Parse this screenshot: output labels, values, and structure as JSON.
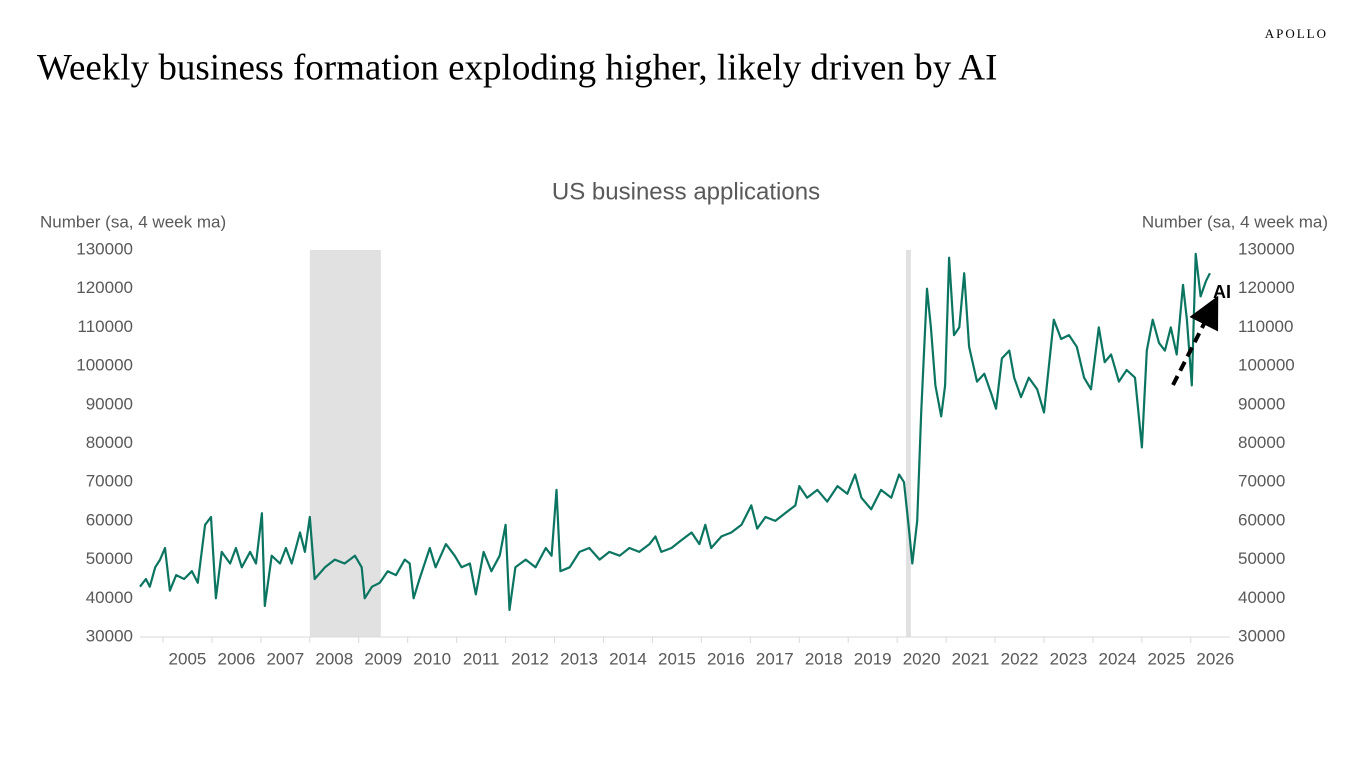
{
  "brand": "APOLLO",
  "headline": "Weekly business formation exploding higher, likely driven by AI",
  "chart_data": {
    "type": "line",
    "title": "US business applications",
    "y_label": "Number (sa, 4 week ma)",
    "y2_label": "Number (sa, 4 week ma)",
    "annotation": "AI",
    "shaded_periods": [
      [
        2008.0,
        2009.45
      ],
      [
        2020.18,
        2020.28
      ]
    ],
    "xlim": [
      2004.53,
      2026.8
    ],
    "xticks": [
      {
        "value": 2005.5,
        "label": "2005"
      },
      {
        "value": 2006.5,
        "label": "2006"
      },
      {
        "value": 2007.5,
        "label": "2007"
      },
      {
        "value": 2008.5,
        "label": "2008"
      },
      {
        "value": 2009.5,
        "label": "2009"
      },
      {
        "value": 2010.5,
        "label": "2010"
      },
      {
        "value": 2011.5,
        "label": "2011"
      },
      {
        "value": 2012.5,
        "label": "2012"
      },
      {
        "value": 2013.5,
        "label": "2013"
      },
      {
        "value": 2014.5,
        "label": "2014"
      },
      {
        "value": 2015.5,
        "label": "2015"
      },
      {
        "value": 2016.5,
        "label": "2016"
      },
      {
        "value": 2017.5,
        "label": "2017"
      },
      {
        "value": 2018.5,
        "label": "2018"
      },
      {
        "value": 2019.5,
        "label": "2019"
      },
      {
        "value": 2020.5,
        "label": "2020"
      },
      {
        "value": 2021.5,
        "label": "2021"
      },
      {
        "value": 2022.5,
        "label": "2022"
      },
      {
        "value": 2023.5,
        "label": "2023"
      },
      {
        "value": 2024.5,
        "label": "2024"
      },
      {
        "value": 2025.5,
        "label": "2025"
      },
      {
        "value": 2026.5,
        "label": "2026"
      }
    ],
    "ylim": [
      30000,
      130000
    ],
    "yticks": [
      30000,
      40000,
      50000,
      60000,
      70000,
      80000,
      90000,
      100000,
      110000,
      120000,
      130000
    ],
    "y2lim": [
      30000,
      130000
    ],
    "y2ticks": [
      30000,
      40000,
      50000,
      60000,
      70000,
      80000,
      90000,
      100000,
      110000,
      120000,
      130000
    ],
    "x": [
      2004.53,
      2004.65,
      2004.73,
      2004.84,
      2004.94,
      2005.04,
      2005.14,
      2005.27,
      2005.43,
      2005.59,
      2005.71,
      2005.86,
      2005.98,
      2006.08,
      2006.2,
      2006.37,
      2006.49,
      2006.61,
      2006.78,
      2006.9,
      2007.02,
      2007.08,
      2007.22,
      2007.39,
      2007.51,
      2007.63,
      2007.8,
      2007.9,
      2008.0,
      2008.1,
      2008.31,
      2008.51,
      2008.71,
      2008.92,
      2009.06,
      2009.12,
      2009.27,
      2009.43,
      2009.59,
      2009.76,
      2009.94,
      2010.04,
      2010.12,
      2010.24,
      2010.45,
      2010.57,
      2010.78,
      2010.96,
      2011.1,
      2011.27,
      2011.39,
      2011.55,
      2011.71,
      2011.88,
      2012.0,
      2012.08,
      2012.2,
      2012.41,
      2012.61,
      2012.82,
      2012.94,
      2013.04,
      2013.12,
      2013.31,
      2013.51,
      2013.71,
      2013.92,
      2014.12,
      2014.33,
      2014.53,
      2014.73,
      2014.94,
      2015.06,
      2015.18,
      2015.39,
      2015.59,
      2015.8,
      2015.96,
      2016.08,
      2016.2,
      2016.41,
      2016.61,
      2016.82,
      2017.02,
      2017.14,
      2017.31,
      2017.51,
      2017.71,
      2017.92,
      2018.0,
      2018.16,
      2018.37,
      2018.57,
      2018.78,
      2018.98,
      2019.14,
      2019.27,
      2019.47,
      2019.67,
      2019.88,
      2020.04,
      2020.14,
      2020.24,
      2020.31,
      2020.41,
      2020.49,
      2020.61,
      2020.69,
      2020.78,
      2020.9,
      2020.98,
      2021.06,
      2021.16,
      2021.27,
      2021.37,
      2021.47,
      2021.63,
      2021.78,
      2021.92,
      2022.02,
      2022.14,
      2022.29,
      2022.39,
      2022.53,
      2022.69,
      2022.86,
      2023.0,
      2023.1,
      2023.2,
      2023.35,
      2023.51,
      2023.67,
      2023.82,
      2023.96,
      2024.12,
      2024.24,
      2024.37,
      2024.53,
      2024.69,
      2024.86,
      2025.0,
      2025.1,
      2025.22,
      2025.35,
      2025.47,
      2025.59,
      2025.71,
      2025.84,
      2025.92,
      2026.02,
      2026.1,
      2026.2,
      2026.31,
      2026.39
    ],
    "series": [
      {
        "color": "#0b7561",
        "values": [
          43000,
          45000,
          43000,
          48000,
          50000,
          53000,
          42000,
          46000,
          45000,
          47000,
          44000,
          59000,
          61000,
          40000,
          52000,
          49000,
          53000,
          48000,
          52000,
          49000,
          62000,
          38000,
          51000,
          49000,
          53000,
          49000,
          57000,
          52000,
          61000,
          45000,
          48000,
          50000,
          49000,
          51000,
          48000,
          40000,
          43000,
          44000,
          47000,
          46000,
          50000,
          49000,
          40000,
          45000,
          53000,
          48000,
          54000,
          51000,
          48000,
          49000,
          41000,
          52000,
          47000,
          51000,
          59000,
          37000,
          48000,
          50000,
          48000,
          53000,
          51000,
          68000,
          47000,
          48000,
          52000,
          53000,
          50000,
          52000,
          51000,
          53000,
          52000,
          54000,
          56000,
          52000,
          53000,
          55000,
          57000,
          54000,
          59000,
          53000,
          56000,
          57000,
          59000,
          64000,
          58000,
          61000,
          60000,
          62000,
          64000,
          69000,
          66000,
          68000,
          65000,
          69000,
          67000,
          72000,
          66000,
          63000,
          68000,
          66000,
          72000,
          70000,
          58000,
          49000,
          60000,
          88000,
          120000,
          110000,
          95000,
          87000,
          95000,
          128000,
          108000,
          110000,
          124000,
          105000,
          96000,
          98000,
          93000,
          89000,
          102000,
          104000,
          97000,
          92000,
          97000,
          94000,
          88000,
          100000,
          112000,
          107000,
          108000,
          105000,
          97000,
          94000,
          110000,
          101000,
          103000,
          96000,
          99000,
          97000,
          79000,
          104000,
          112000,
          106000,
          104000,
          110000,
          103000,
          121000,
          112000,
          95000,
          129000,
          118000,
          122000,
          124000
        ]
      }
    ]
  }
}
